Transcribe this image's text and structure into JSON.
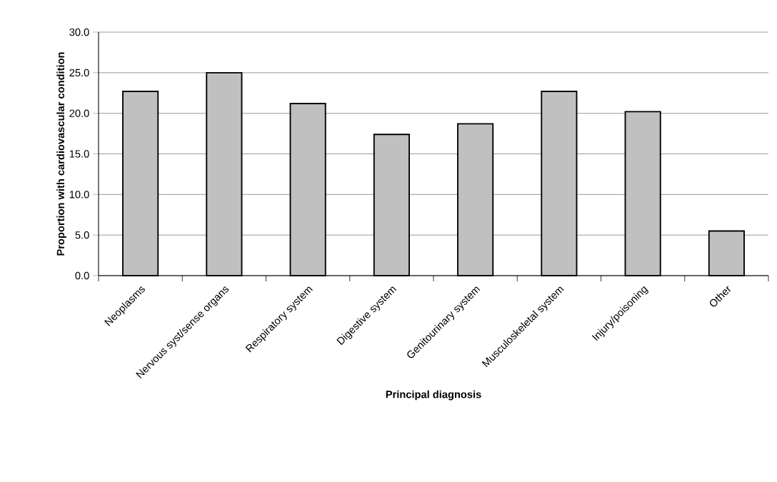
{
  "chart_data": {
    "type": "bar",
    "xlabel": "Principal diagnosis",
    "ylabel": "Proportion with cardiovascular condition",
    "categories": [
      "Neoplasms",
      "Nervous syst/sense organs",
      "Respiratory system",
      "Digestive system",
      "Genitourinary system",
      "Musculoskeletal system",
      "Injury/poisoning",
      "Other"
    ],
    "values": [
      22.7,
      25.0,
      21.2,
      17.4,
      18.7,
      22.7,
      20.2,
      5.5
    ],
    "color": "#c0c0c0",
    "ylim": [
      0,
      30
    ],
    "yticks": [
      {
        "value": 0,
        "label": "0.0"
      },
      {
        "value": 5,
        "label": "5.0"
      },
      {
        "value": 10,
        "label": "10.0"
      },
      {
        "value": 15,
        "label": "15.0"
      },
      {
        "value": 20,
        "label": "20.0"
      },
      {
        "value": 25,
        "label": "25.0"
      },
      {
        "value": 30,
        "label": "30.0"
      }
    ],
    "grid": "y"
  }
}
